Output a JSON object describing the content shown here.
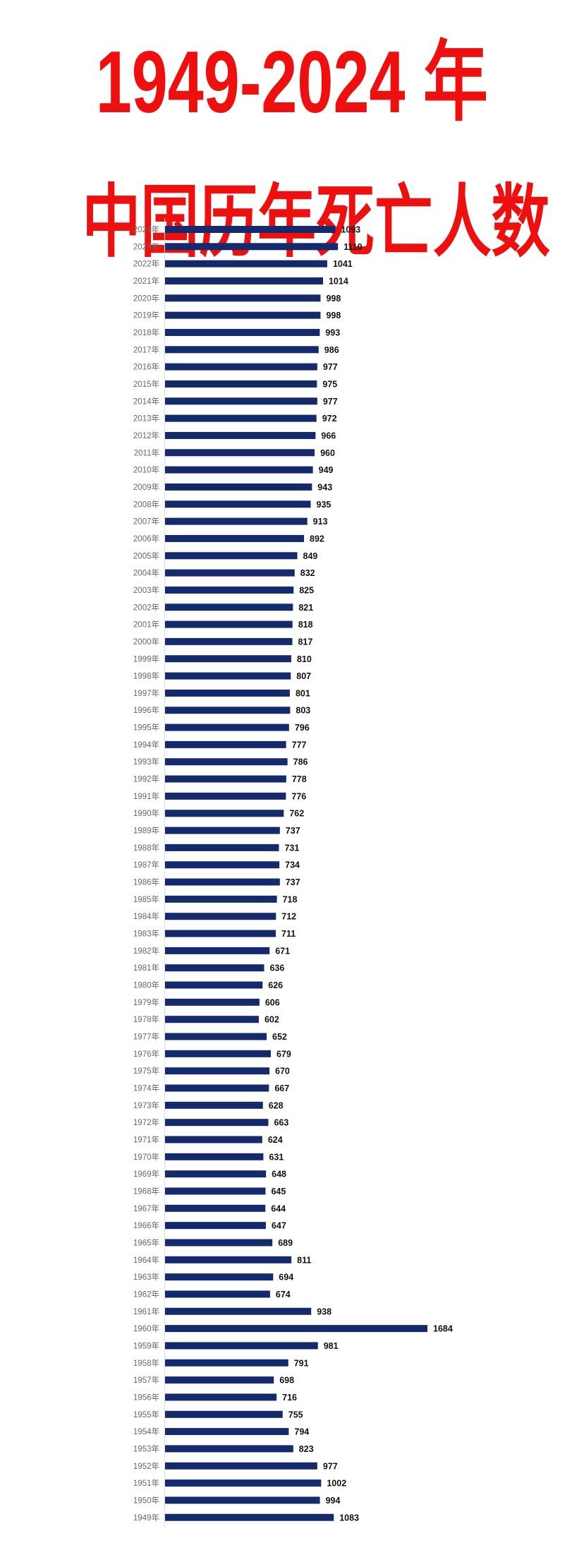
{
  "title_line1": "1949-2024 年",
  "title_line2": "中国历年死亡人数",
  "chart_data": {
    "type": "bar",
    "orientation": "horizontal",
    "bar_color": "#142a6c",
    "title": "1949-2024 年 中国历年死亡人数",
    "categories": [
      "2024年",
      "2023年",
      "2022年",
      "2021年",
      "2020年",
      "2019年",
      "2018年",
      "2017年",
      "2016年",
      "2015年",
      "2014年",
      "2013年",
      "2012年",
      "2011年",
      "2010年",
      "2009年",
      "2008年",
      "2007年",
      "2006年",
      "2005年",
      "2004年",
      "2003年",
      "2002年",
      "2001年",
      "2000年",
      "1999年",
      "1998年",
      "1997年",
      "1996年",
      "1995年",
      "1994年",
      "1993年",
      "1992年",
      "1991年",
      "1990年",
      "1989年",
      "1988年",
      "1987年",
      "1986年",
      "1985年",
      "1984年",
      "1983年",
      "1982年",
      "1981年",
      "1980年",
      "1979年",
      "1978年",
      "1977年",
      "1976年",
      "1975年",
      "1974年",
      "1973年",
      "1972年",
      "1971年",
      "1970年",
      "1969年",
      "1968年",
      "1967年",
      "1966年",
      "1965年",
      "1964年",
      "1963年",
      "1962年",
      "1961年",
      "1960年",
      "1959年",
      "1958年",
      "1957年",
      "1956年",
      "1955年",
      "1954年",
      "1953年",
      "1952年",
      "1951年",
      "1950年",
      "1949年"
    ],
    "values": [
      1093,
      1110,
      1041,
      1014,
      998,
      998,
      993,
      986,
      977,
      975,
      977,
      972,
      966,
      960,
      949,
      943,
      935,
      913,
      892,
      849,
      832,
      825,
      821,
      818,
      817,
      810,
      807,
      801,
      803,
      796,
      777,
      786,
      778,
      776,
      762,
      737,
      731,
      734,
      737,
      718,
      712,
      711,
      671,
      636,
      626,
      606,
      602,
      652,
      679,
      670,
      667,
      628,
      663,
      624,
      631,
      648,
      645,
      644,
      647,
      689,
      811,
      694,
      674,
      938,
      1684,
      981,
      791,
      698,
      716,
      755,
      794,
      823,
      977,
      1002,
      994,
      1083
    ],
    "xlim": [
      0,
      1684
    ],
    "grid": false,
    "data_labels": true
  }
}
